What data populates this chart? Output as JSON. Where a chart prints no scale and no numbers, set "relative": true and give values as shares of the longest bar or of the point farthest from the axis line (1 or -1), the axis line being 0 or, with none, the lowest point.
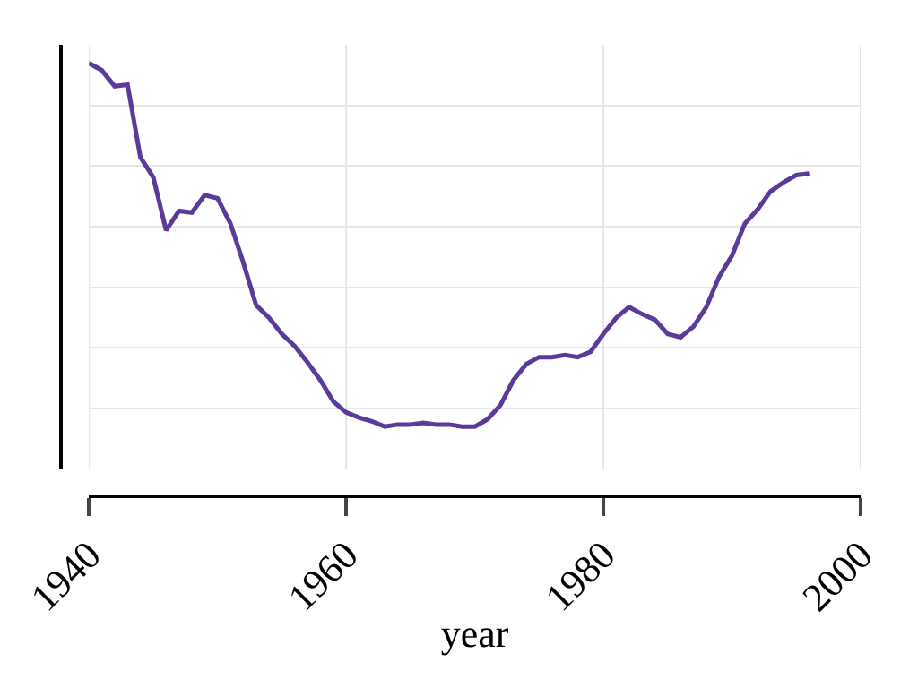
{
  "chart_data": {
    "type": "line",
    "xlabel": "year",
    "relative": true,
    "grid": true,
    "marker": "none",
    "line_style": "solid",
    "xlim": [
      1940,
      2000
    ],
    "xticks": [
      1940,
      1960,
      1980,
      2000
    ],
    "x": [
      1940,
      1941,
      1942,
      1943,
      1944,
      1945,
      1946,
      1947,
      1948,
      1949,
      1950,
      1951,
      1952,
      1953,
      1954,
      1955,
      1956,
      1957,
      1958,
      1959,
      1960,
      1961,
      1962,
      1963,
      1964,
      1965,
      1966,
      1967,
      1968,
      1969,
      1970,
      1971,
      1972,
      1973,
      1974,
      1975,
      1976,
      1977,
      1978,
      1979,
      1980,
      1981,
      1982,
      1983,
      1984,
      1985,
      1986,
      1987,
      1988,
      1989,
      1990,
      1991,
      1992,
      1993,
      1994,
      1995,
      1996
    ],
    "series": [
      {
        "color": "#5b3a9a",
        "values": [
          1.0,
          0.982,
          0.943,
          0.947,
          0.768,
          0.719,
          0.588,
          0.636,
          0.632,
          0.675,
          0.667,
          0.605,
          0.509,
          0.404,
          0.373,
          0.333,
          0.303,
          0.263,
          0.219,
          0.167,
          0.14,
          0.127,
          0.118,
          0.105,
          0.11,
          0.11,
          0.114,
          0.11,
          0.11,
          0.105,
          0.105,
          0.123,
          0.158,
          0.219,
          0.259,
          0.276,
          0.276,
          0.281,
          0.276,
          0.289,
          0.333,
          0.373,
          0.399,
          0.382,
          0.368,
          0.333,
          0.325,
          0.351,
          0.399,
          0.474,
          0.526,
          0.605,
          0.64,
          0.684,
          0.706,
          0.724,
          0.728
        ]
      }
    ]
  }
}
